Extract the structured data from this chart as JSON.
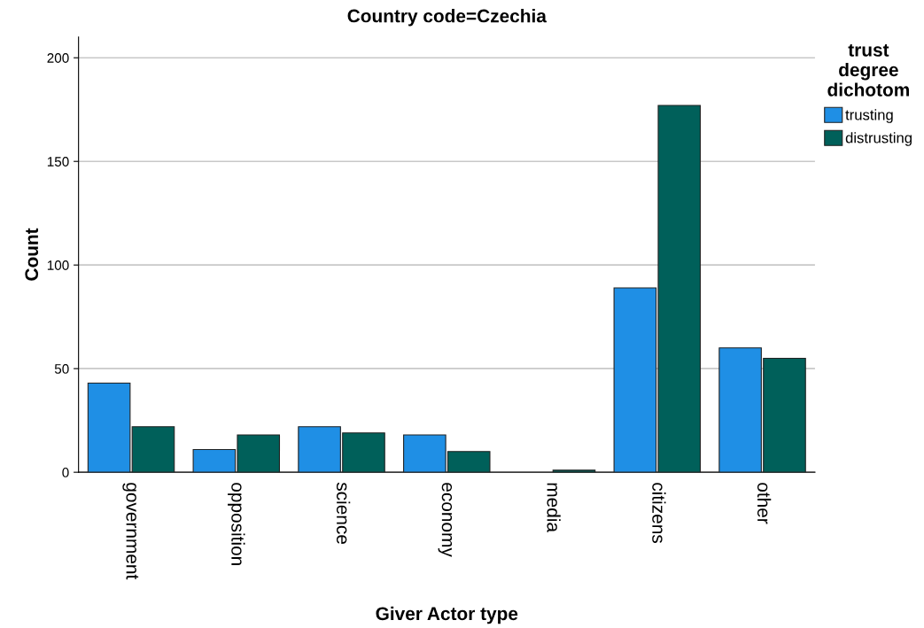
{
  "chart_data": {
    "type": "bar",
    "title": "Country code=Czechia",
    "xlabel": "Giver Actor type",
    "ylabel": "Count",
    "legend_title": "trust\ndegree\ndichotom",
    "categories": [
      "government",
      "opposition",
      "science",
      "economy",
      "media",
      "citizens",
      "other"
    ],
    "series": [
      {
        "name": "trusting",
        "color": "#1f8fe5",
        "values": [
          43,
          11,
          22,
          18,
          null,
          89,
          60
        ]
      },
      {
        "name": "distrusting",
        "color": "#00605a",
        "values": [
          22,
          18,
          19,
          10,
          1,
          177,
          55
        ]
      }
    ],
    "ylim": [
      0,
      210
    ],
    "yticks": [
      0,
      50,
      100,
      150,
      200
    ],
    "grid": "y",
    "legend": "right"
  }
}
